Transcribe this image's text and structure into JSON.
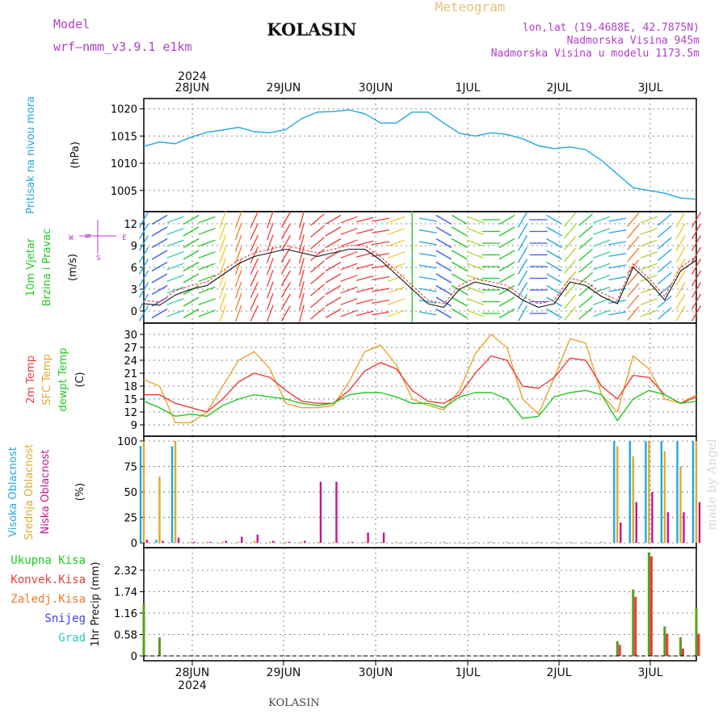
{
  "header": {
    "model_label": "Model",
    "model_name": "wrf—nmm_v3.9.1  e1km",
    "title": "KOLASIN",
    "meteogram": "Meteogram",
    "lonlat": "lon,lat (19.4688E, 42.7875N)",
    "elev": "Nadmorska Visina 945m",
    "elev_model": "Nadmorska Visina u modelu 1173.5m",
    "year_top": "2024",
    "year_bottom": "2024",
    "footer": "KOLASIN",
    "credit": "made by Angel"
  },
  "colors": {
    "pressure": "#22a7e0",
    "temp2m": "#ee3b3b",
    "sfc": "#e8a52e",
    "dewpt": "#22c822",
    "high_cloud": "#22a7e0",
    "mid_cloud": "#dcaa2e",
    "low_cloud": "#c8148c",
    "precip_total": "#5a9e1e",
    "precip_conv": "#ee3b3b",
    "magenta_text": "#b040c8"
  },
  "panel_labels": {
    "pressure": {
      "lines": [
        "Pritisak na nivou mora"
      ],
      "unit": "(hPa)"
    },
    "wind": {
      "lines": [
        "10m Vjetar",
        "Brzina i Pravac"
      ],
      "unit": "(m/s)",
      "compass_n": "N",
      "compass_w": "W",
      "compass_e": "E",
      "compass_s": "S"
    },
    "temp": {
      "lines": [
        "2m Temp",
        "SFC Temp",
        "dewpt Temp"
      ],
      "unit": "(C)"
    },
    "cloud": {
      "lines": [
        "Visoka Oblacnost",
        "Srednja Oblacnost",
        "Niska Oblacnost"
      ],
      "unit": "(%)"
    },
    "precip": {
      "legend": [
        "Ukupna Kisa",
        "Konvek.Kisa",
        "Zaledj.Kisa",
        "Snijeg",
        "Grad"
      ],
      "legend_colors": [
        "#22c822",
        "#ee3b3b",
        "#f07828",
        "#4040e0",
        "#2cc8c8"
      ],
      "unit": "1hr Precip (mm)"
    }
  },
  "chart_data": [
    {
      "type": "line",
      "title": "Pritisak na nivou mora",
      "ylabel": "(hPa)",
      "ylim": [
        1002,
        1021
      ],
      "yticks": [
        1005,
        1010,
        1015,
        1020
      ],
      "x_dates": [
        "28JUN",
        "29JUN",
        "30JUN",
        "1JUL",
        "2JUL",
        "3JUL"
      ],
      "x_hours": [
        0,
        4,
        8,
        12,
        16,
        20,
        24,
        28,
        32,
        36,
        40,
        44,
        48,
        52,
        56,
        60,
        64,
        68,
        72,
        76,
        80,
        84,
        88,
        92,
        96,
        100,
        104,
        108,
        112,
        116,
        120,
        124,
        128,
        132,
        136,
        140
      ],
      "series": [
        {
          "values": [
            1013.1,
            1013.9,
            1013.6,
            1014.8,
            1015.7,
            1016.1,
            1016.6,
            1015.8,
            1015.6,
            1016.2,
            1018.2,
            1019.4,
            1019.5,
            1019.8,
            1019.1,
            1017.4,
            1017.4,
            1019.4,
            1019.4,
            1017.4,
            1015.5,
            1015.0,
            1015.6,
            1015.3,
            1014.5,
            1013.2,
            1012.7,
            1013.0,
            1012.5,
            1010.5,
            1008.0,
            1005.5,
            1005.0,
            1004.5,
            1003.6,
            1003.4
          ]
        }
      ]
    },
    {
      "type": "line",
      "title": "10m Vjetar Brzina i Pravac",
      "ylabel": "(m/s)",
      "ylim": [
        -1,
        13
      ],
      "yticks": [
        0,
        3,
        6,
        9,
        12
      ],
      "x_hours": [
        0,
        4,
        8,
        12,
        16,
        20,
        24,
        28,
        32,
        36,
        40,
        44,
        48,
        52,
        56,
        60,
        64,
        68,
        72,
        76,
        80,
        84,
        88,
        92,
        96,
        100,
        104,
        108,
        112,
        116,
        120,
        124,
        128,
        132,
        136,
        140
      ],
      "series": [
        {
          "values": [
            1.0,
            0.8,
            2.2,
            3.0,
            3.5,
            5.0,
            6.5,
            7.5,
            8.0,
            8.5,
            8.0,
            7.5,
            8.0,
            8.5,
            8.5,
            7.0,
            5.0,
            3.0,
            1.0,
            0.5,
            3.0,
            4.0,
            3.5,
            3.0,
            1.5,
            0.5,
            1.0,
            4.0,
            3.5,
            2.0,
            1.0,
            6.0,
            4.0,
            1.5,
            5.5,
            7.0
          ]
        },
        {
          "values": [
            1.5,
            1.2,
            2.8,
            3.5,
            4.0,
            5.5,
            7.0,
            8.0,
            8.5,
            9.0,
            8.5,
            8.0,
            8.5,
            9.0,
            9.0,
            7.5,
            5.5,
            3.5,
            1.5,
            1.0,
            3.5,
            4.5,
            4.0,
            3.5,
            2.0,
            1.0,
            1.5,
            4.5,
            4.0,
            2.5,
            1.5,
            6.5,
            4.5,
            2.0,
            6.0,
            7.5
          ]
        }
      ],
      "directions_deg": [
        210,
        240,
        250,
        240,
        250,
        200,
        200,
        205,
        200,
        210,
        195,
        230,
        240,
        250,
        255,
        260,
        250,
        180,
        280,
        300,
        300,
        290,
        270,
        240,
        210,
        270,
        300,
        220,
        230,
        250,
        260,
        220,
        250,
        230,
        210,
        210
      ]
    },
    {
      "type": "line",
      "title": "2m Temp / SFC Temp / dewpt Temp",
      "ylabel": "(C)",
      "ylim": [
        7.5,
        31.5
      ],
      "yticks": [
        9,
        12,
        15,
        18,
        21,
        24,
        27,
        30
      ],
      "x_hours": [
        0,
        4,
        8,
        12,
        16,
        20,
        24,
        28,
        32,
        36,
        40,
        44,
        48,
        52,
        56,
        60,
        64,
        68,
        72,
        76,
        80,
        84,
        88,
        92,
        96,
        100,
        104,
        108,
        112,
        116,
        120,
        124,
        128,
        132,
        136,
        140
      ],
      "series": [
        {
          "name": "2m Temp",
          "values": [
            16.0,
            16.0,
            14.0,
            13.0,
            12.0,
            15.0,
            19.0,
            21.0,
            20.0,
            17.0,
            14.5,
            14.0,
            14.0,
            17.0,
            21.5,
            23.5,
            22.0,
            17.0,
            14.5,
            14.0,
            16.0,
            21.0,
            25.0,
            24.0,
            18.0,
            17.5,
            20.0,
            24.5,
            24.0,
            18.0,
            15.0,
            20.5,
            20.0,
            16.0,
            14.0,
            15.5
          ]
        },
        {
          "name": "SFC Temp",
          "values": [
            19.5,
            18.0,
            9.5,
            9.5,
            12.0,
            18.0,
            24.0,
            26.0,
            22.0,
            14.0,
            13.0,
            13.0,
            13.5,
            19.0,
            26.0,
            27.5,
            23.0,
            15.0,
            13.5,
            12.5,
            17.0,
            25.5,
            30.0,
            27.0,
            15.0,
            11.5,
            20.0,
            29.0,
            28.0,
            16.0,
            12.0,
            25.0,
            22.0,
            15.0,
            14.0,
            16.0
          ]
        },
        {
          "name": "dewpt Temp",
          "values": [
            14.5,
            13.0,
            11.0,
            11.5,
            11.0,
            13.5,
            15.0,
            16.0,
            15.5,
            15.0,
            14.0,
            13.5,
            14.0,
            16.0,
            16.5,
            16.5,
            15.5,
            14.0,
            14.0,
            13.0,
            15.5,
            16.5,
            16.5,
            15.0,
            10.5,
            11.0,
            15.5,
            16.5,
            17.0,
            16.0,
            10.0,
            15.0,
            17.0,
            16.0,
            14.0,
            14.5
          ]
        }
      ]
    },
    {
      "type": "bar",
      "title": "Visoka / Srednja / Niska Oblacnost",
      "ylabel": "(%)",
      "ylim": [
        0,
        100
      ],
      "yticks": [
        0,
        25,
        50,
        75,
        100
      ],
      "x_hours": [
        0,
        4,
        8,
        12,
        16,
        20,
        24,
        28,
        32,
        36,
        40,
        44,
        48,
        52,
        56,
        60,
        64,
        68,
        72,
        76,
        80,
        84,
        88,
        92,
        96,
        100,
        104,
        108,
        112,
        116,
        120,
        124,
        128,
        132,
        136,
        140
      ],
      "series": [
        {
          "name": "Visoka Oblacnost",
          "values": [
            95,
            3,
            95,
            0,
            0,
            0,
            0,
            0,
            0,
            0,
            0,
            0,
            0,
            0,
            0,
            0,
            0,
            0,
            0,
            0,
            0,
            0,
            0,
            0,
            0,
            0,
            0,
            0,
            0,
            0,
            100,
            100,
            100,
            100,
            100,
            100
          ]
        },
        {
          "name": "Srednja Oblacnost",
          "values": [
            100,
            65,
            100,
            1,
            1,
            1,
            1,
            2,
            1,
            1,
            1,
            1,
            1,
            1,
            1,
            1,
            1,
            1,
            1,
            1,
            1,
            1,
            1,
            1,
            1,
            1,
            1,
            1,
            1,
            1,
            95,
            85,
            100,
            90,
            75,
            100
          ]
        },
        {
          "name": "Niska Oblacnost",
          "values": [
            3,
            2,
            5,
            1,
            1,
            2,
            6,
            8,
            2,
            1,
            2,
            60,
            60,
            1,
            10,
            10,
            0,
            0,
            0,
            0,
            0,
            0,
            0,
            0,
            0,
            0,
            0,
            0,
            0,
            0,
            20,
            40,
            50,
            30,
            30,
            40
          ]
        }
      ]
    },
    {
      "type": "bar",
      "title": "1hr Precip (mm)",
      "ylabel": "1hr Precip (mm)",
      "ylim": [
        0,
        2.8
      ],
      "yticks": [
        0,
        0.58,
        1.16,
        1.74,
        2.32
      ],
      "x_hours": [
        0,
        4,
        8,
        12,
        16,
        20,
        24,
        28,
        32,
        36,
        40,
        44,
        48,
        52,
        56,
        60,
        64,
        68,
        72,
        76,
        80,
        84,
        88,
        92,
        96,
        100,
        104,
        108,
        112,
        116,
        120,
        124,
        128,
        132,
        136,
        140
      ],
      "series": [
        {
          "name": "Ukupna Kisa",
          "values": [
            1.4,
            0.5,
            0,
            0,
            0,
            0,
            0,
            0,
            0,
            0,
            0,
            0,
            0,
            0,
            0,
            0,
            0,
            0,
            0,
            0,
            0,
            0,
            0,
            0,
            0,
            0,
            0,
            0,
            0,
            0,
            0.4,
            1.8,
            2.8,
            0.8,
            0.5,
            1.3
          ]
        },
        {
          "name": "Konvek.Kisa",
          "values": [
            0,
            0,
            0,
            0,
            0,
            0,
            0,
            0,
            0,
            0,
            0,
            0,
            0,
            0,
            0,
            0,
            0,
            0,
            0,
            0,
            0,
            0,
            0,
            0,
            0,
            0,
            0,
            0,
            0,
            0,
            0.3,
            1.6,
            2.7,
            0.6,
            0.2,
            0.6
          ]
        }
      ]
    }
  ]
}
